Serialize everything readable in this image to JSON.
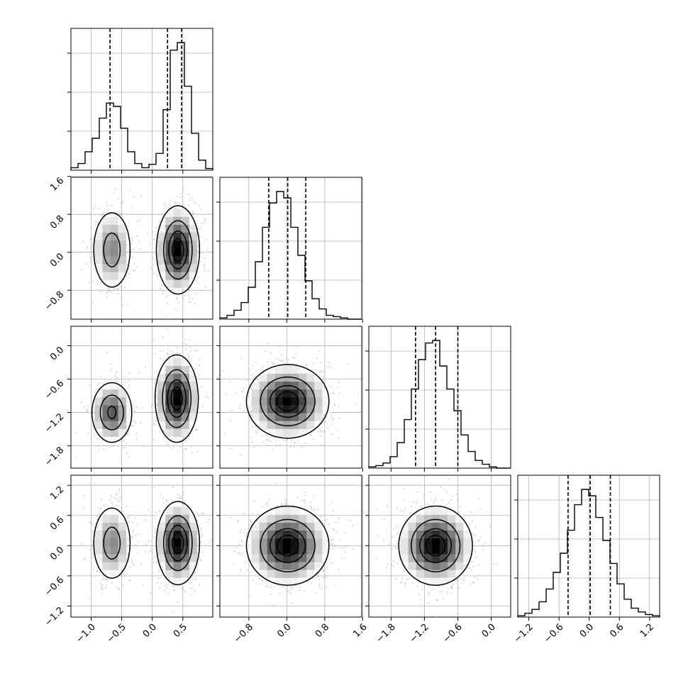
{
  "chart_data": {
    "type": "corner",
    "grid": true,
    "n_params": 4,
    "axis_ticks": [
      {
        "values": [
          -1.0,
          -0.5,
          0.0,
          0.5
        ],
        "labels": [
          "−1.0",
          "−0.5",
          "0.0",
          "0.5"
        ],
        "range": [
          -1.33,
          0.99
        ]
      },
      {
        "values": [
          -0.8,
          0.0,
          0.8,
          1.6
        ],
        "labels": [
          "−0.8",
          "0.0",
          "0.8",
          "1.6"
        ],
        "range": [
          -1.41,
          1.58
        ]
      },
      {
        "values": [
          -1.8,
          -1.2,
          -0.6,
          0.0
        ],
        "labels": [
          "−1.8",
          "−1.2",
          "−0.6",
          "0.0"
        ],
        "range": [
          -2.2,
          0.35
        ]
      },
      {
        "values": [
          -1.2,
          -0.6,
          0.0,
          0.6,
          1.2
        ],
        "labels": [
          "−1.2",
          "−0.6",
          "0.0",
          "0.6",
          "1.2"
        ],
        "range": [
          -1.42,
          1.4
        ]
      }
    ],
    "histograms": [
      {
        "param": 0,
        "bin_range": [
          -1.33,
          0.99
        ],
        "counts": [
          0.03,
          0.08,
          0.22,
          0.38,
          0.62,
          0.8,
          0.76,
          0.5,
          0.22,
          0.08,
          0.03,
          0.07,
          0.2,
          0.72,
          1.43,
          1.52,
          1.0,
          0.44,
          0.12,
          0.02
        ],
        "quantiles": [
          -0.69,
          0.25,
          0.48
        ]
      },
      {
        "param": 1,
        "bin_range": [
          -1.41,
          1.58
        ],
        "counts": [
          0.01,
          0.03,
          0.07,
          0.13,
          0.25,
          0.45,
          0.72,
          0.91,
          1.0,
          0.95,
          0.72,
          0.5,
          0.3,
          0.16,
          0.08,
          0.03,
          0.02,
          0.01,
          0.0,
          0.0
        ],
        "quantiles": [
          -0.38,
          0.02,
          0.4
        ]
      },
      {
        "param": 2,
        "bin_range": [
          -2.2,
          0.35
        ],
        "counts": [
          0.01,
          0.02,
          0.04,
          0.09,
          0.2,
          0.38,
          0.62,
          0.85,
          0.98,
          1.0,
          0.8,
          0.62,
          0.45,
          0.26,
          0.13,
          0.06,
          0.03,
          0.01,
          0.0,
          0.0
        ],
        "quantiles": [
          -1.36,
          -1.0,
          -0.6
        ]
      },
      {
        "param": 3,
        "bin_range": [
          -1.42,
          1.4
        ],
        "counts": [
          0.01,
          0.03,
          0.06,
          0.12,
          0.22,
          0.35,
          0.5,
          0.68,
          0.88,
          1.0,
          0.95,
          0.78,
          0.6,
          0.42,
          0.26,
          0.14,
          0.07,
          0.04,
          0.02,
          0.01
        ],
        "quantiles": [
          -0.42,
          0.02,
          0.42
        ]
      }
    ],
    "density_panels": [
      {
        "x_param": 0,
        "y_param": 1,
        "modes": [
          {
            "center": [
              -0.66,
              0.05
            ],
            "sigma": [
              0.17,
              0.45
            ],
            "weight": 0.35
          },
          {
            "center": [
              0.42,
              0.05
            ],
            "sigma": [
              0.17,
              0.45
            ],
            "weight": 0.65
          }
        ]
      },
      {
        "x_param": 0,
        "y_param": 2,
        "modes": [
          {
            "center": [
              -0.66,
              -1.2
            ],
            "sigma": [
              0.17,
              0.28
            ],
            "weight": 0.35
          },
          {
            "center": [
              0.4,
              -0.95
            ],
            "sigma": [
              0.17,
              0.38
            ],
            "weight": 0.65
          }
        ]
      },
      {
        "x_param": 0,
        "y_param": 3,
        "modes": [
          {
            "center": [
              -0.66,
              0.05
            ],
            "sigma": [
              0.17,
              0.4
            ],
            "weight": 0.35
          },
          {
            "center": [
              0.42,
              0.05
            ],
            "sigma": [
              0.17,
              0.4
            ],
            "weight": 0.65
          }
        ]
      },
      {
        "x_param": 1,
        "y_param": 2,
        "modes": [
          {
            "center": [
              0.02,
              -1.0
            ],
            "sigma": [
              0.42,
              0.32
            ],
            "weight": 1.0
          }
        ]
      },
      {
        "x_param": 1,
        "y_param": 3,
        "modes": [
          {
            "center": [
              0.02,
              0.0
            ],
            "sigma": [
              0.42,
              0.38
            ],
            "weight": 1.0
          }
        ]
      },
      {
        "x_param": 2,
        "y_param": 3,
        "modes": [
          {
            "center": [
              -1.0,
              0.0
            ],
            "sigma": [
              0.32,
              0.38
            ],
            "weight": 1.0
          }
        ]
      }
    ],
    "contour_levels": [
      0.118,
      0.393,
      0.675,
      0.865
    ],
    "colors": {
      "line": "#000000",
      "scatter": "#b4b4b4",
      "grid": "#b0b0b0",
      "density_low": "#ffffff",
      "density_high": "#000000"
    }
  }
}
